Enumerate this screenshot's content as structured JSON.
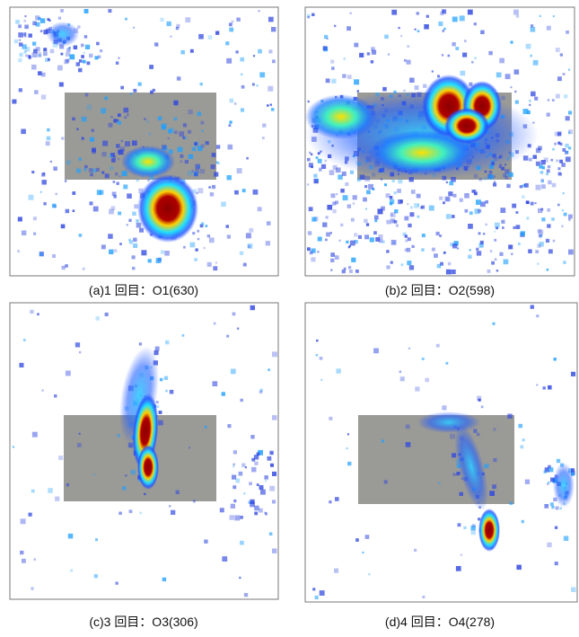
{
  "panels": [
    {
      "caption": "(a)1 回目：O1(630)"
    },
    {
      "caption": "(b)2 回目：O2(598)"
    },
    {
      "caption": "(c)3 回目：O3(306)"
    },
    {
      "caption": "(d)4 回目：O4(278)"
    }
  ]
}
